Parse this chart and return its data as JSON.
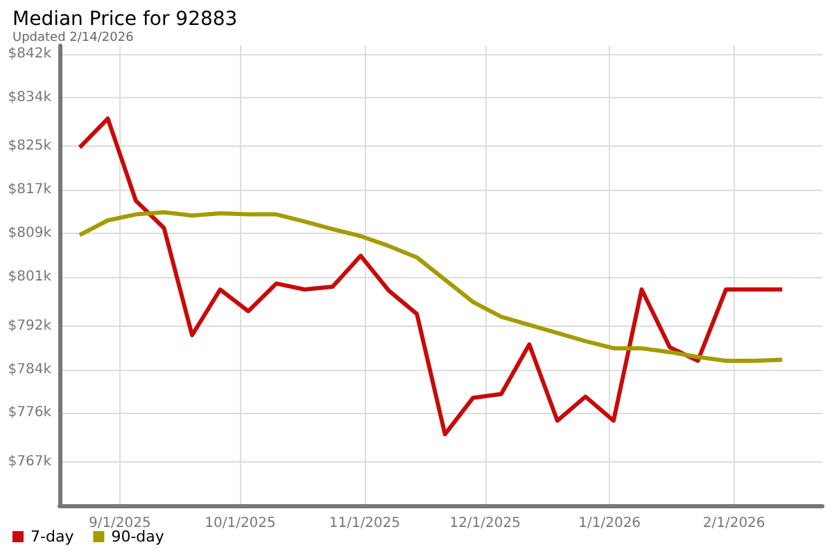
{
  "chart_data": {
    "type": "line",
    "title": "Median Price for 92883",
    "subtitle": "Updated 2/14/2026",
    "x": [
      "2025-08-22",
      "2025-08-29",
      "2025-09-05",
      "2025-09-12",
      "2025-09-19",
      "2025-09-26",
      "2025-10-03",
      "2025-10-10",
      "2025-10-17",
      "2025-10-24",
      "2025-10-31",
      "2025-11-07",
      "2025-11-14",
      "2025-11-21",
      "2025-11-28",
      "2025-12-05",
      "2025-12-12",
      "2025-12-19",
      "2025-12-26",
      "2026-01-02",
      "2026-01-09",
      "2026-01-16",
      "2026-01-23",
      "2026-01-30",
      "2026-02-06",
      "2026-02-13"
    ],
    "series": [
      {
        "name": "7-day",
        "color": "#c80a0a",
        "values": [
          824.8,
          830.1,
          815.0,
          810.0,
          790.3,
          798.7,
          794.7,
          799.8,
          798.7,
          799.2,
          804.9,
          798.5,
          794.2,
          772.1,
          778.8,
          779.5,
          788.6,
          774.6,
          779.0,
          774.6,
          798.7,
          788.1,
          785.6,
          798.7,
          798.7,
          798.7
        ]
      },
      {
        "name": "90-day",
        "color": "#a39c00",
        "values": [
          808.7,
          811.4,
          812.5,
          812.9,
          812.3,
          812.7,
          812.5,
          812.5,
          811.2,
          809.8,
          808.5,
          806.7,
          804.6,
          800.5,
          796.4,
          793.7,
          792.2,
          790.7,
          789.2,
          787.9,
          787.9,
          787.2,
          786.3,
          785.6,
          785.6,
          785.8
        ]
      }
    ],
    "xlim": [
      "2025-08-17",
      "2026-02-23"
    ],
    "xticks": [
      {
        "value": "2025-09-01",
        "label": "9/1/2025"
      },
      {
        "value": "2025-10-01",
        "label": "10/1/2025"
      },
      {
        "value": "2025-11-01",
        "label": "11/1/2025"
      },
      {
        "value": "2025-12-01",
        "label": "12/1/2025"
      },
      {
        "value": "2026-01-01",
        "label": "1/1/2026"
      },
      {
        "value": "2026-02-01",
        "label": "2/1/2026"
      }
    ],
    "ylim": [
      759,
      843.5
    ],
    "yticks": [
      {
        "value": 767,
        "label": "$767k"
      },
      {
        "value": 776,
        "label": "$776k"
      },
      {
        "value": 784,
        "label": "$784k"
      },
      {
        "value": 792,
        "label": "$792k"
      },
      {
        "value": 801,
        "label": "$801k"
      },
      {
        "value": 809,
        "label": "$809k"
      },
      {
        "value": 817,
        "label": "$817k"
      },
      {
        "value": 825,
        "label": "$825k"
      },
      {
        "value": 834,
        "label": "$834k"
      },
      {
        "value": 842,
        "label": "$842k"
      }
    ],
    "grid": true,
    "legend": "bottom left",
    "marker": "none",
    "line_style": "solid"
  }
}
